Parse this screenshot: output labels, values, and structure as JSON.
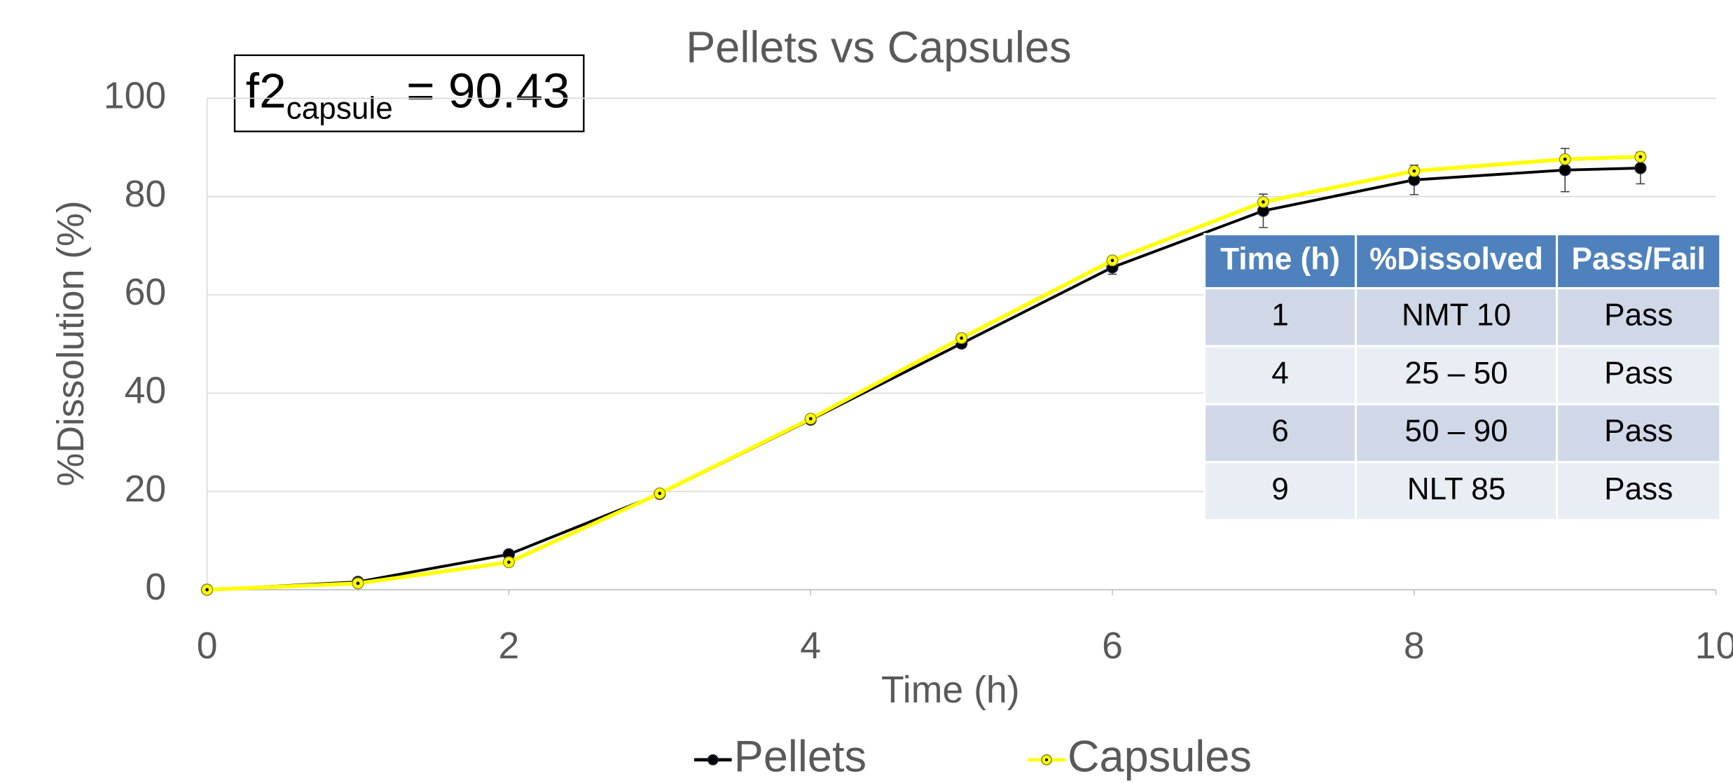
{
  "chart_data": {
    "type": "line",
    "title": "Pellets vs Capsules",
    "x_label": "Time (h)",
    "y_label": "%Dissolution (%)",
    "x": [
      0,
      1,
      2,
      3,
      4,
      5,
      6,
      7,
      8,
      9,
      9.5
    ],
    "xlim": [
      0,
      10
    ],
    "xticks": [
      0,
      2,
      4,
      6,
      8,
      10
    ],
    "ylim": [
      0,
      100
    ],
    "yticks": [
      0,
      20,
      40,
      60,
      80,
      100
    ],
    "grid": true,
    "legend": "bottom",
    "series": [
      {
        "name": "Pellets",
        "color": "#000000",
        "values": [
          0,
          1.6,
          7.2,
          19.5,
          34.6,
          50.1,
          65.6,
          77.1,
          83.4,
          85.4,
          85.8
        ],
        "errors": [
          null,
          null,
          null,
          null,
          null,
          0.8,
          1.4,
          3.4,
          3,
          4.4,
          3.2
        ]
      },
      {
        "name": "Capsules",
        "color": "#ffff00",
        "values": [
          0,
          1.3,
          5.6,
          19.6,
          34.8,
          51.2,
          67,
          78.9,
          85.2,
          87.6,
          88.1
        ]
      }
    ],
    "annotation": {
      "main": "f2",
      "sub": "capsule",
      "rest": " = 90.43"
    },
    "table": {
      "header": [
        "Time (h)",
        "%Dissolved",
        "Pass/Fail"
      ],
      "rows": [
        [
          "1",
          "NMT 10",
          "Pass"
        ],
        [
          "4",
          "25 – 50",
          "Pass"
        ],
        [
          "6",
          "50 – 90",
          "Pass"
        ],
        [
          "9",
          "NLT 85",
          "Pass"
        ]
      ]
    }
  }
}
